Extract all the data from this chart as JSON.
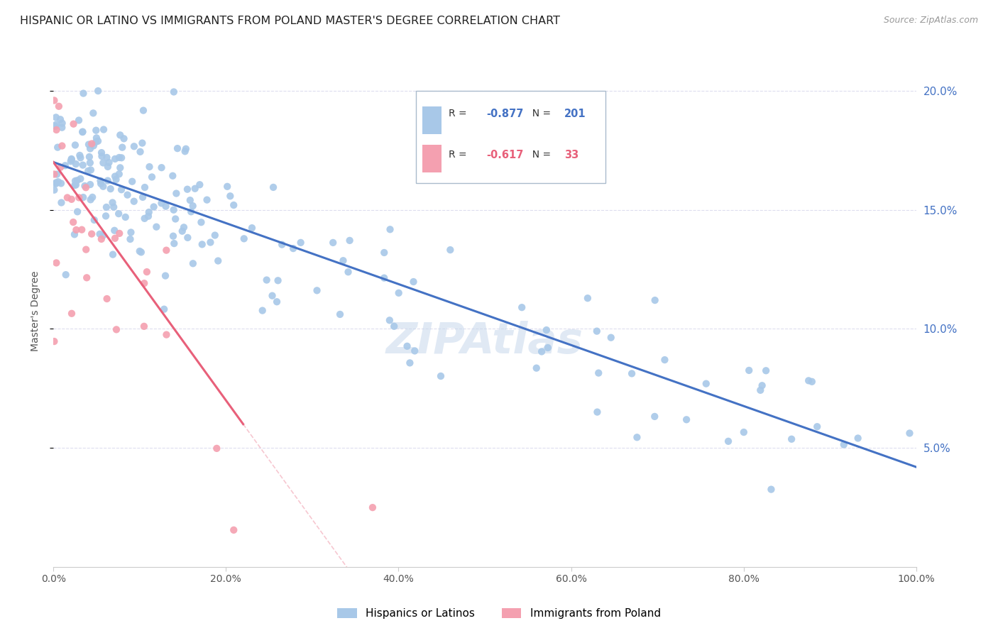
{
  "title": "HISPANIC OR LATINO VS IMMIGRANTS FROM POLAND MASTER'S DEGREE CORRELATION CHART",
  "source_text": "Source: ZipAtlas.com",
  "ylabel": "Master's Degree",
  "xlim": [
    0.0,
    1.0
  ],
  "ylim": [
    0.0,
    0.215
  ],
  "ytick_values": [
    0.05,
    0.1,
    0.15,
    0.2
  ],
  "ytick_labels": [
    "5.0%",
    "10.0%",
    "15.0%",
    "20.0%"
  ],
  "xtick_values": [
    0.0,
    0.2,
    0.4,
    0.6,
    0.8,
    1.0
  ],
  "xtick_labels": [
    "0.0%",
    "20.0%",
    "40.0%",
    "60.0%",
    "80.0%",
    "100.0%"
  ],
  "blue_R": "-0.877",
  "blue_N": "201",
  "pink_R": "-0.617",
  "pink_N": "33",
  "blue_color": "#A8C8E8",
  "pink_color": "#F4A0B0",
  "blue_line_color": "#4472C4",
  "pink_line_color": "#E8607A",
  "legend_label_blue": "Hispanics or Latinos",
  "legend_label_pink": "Immigrants from Poland",
  "watermark": "ZIPAtlas",
  "blue_line_y0": 0.17,
  "blue_line_y1": 0.042,
  "pink_line_y0": 0.17,
  "pink_line_x1": 0.22,
  "pink_line_y1": 0.06,
  "background_color": "#FFFFFF",
  "grid_color": "#DDDDEE",
  "right_axis_color": "#4472C4"
}
